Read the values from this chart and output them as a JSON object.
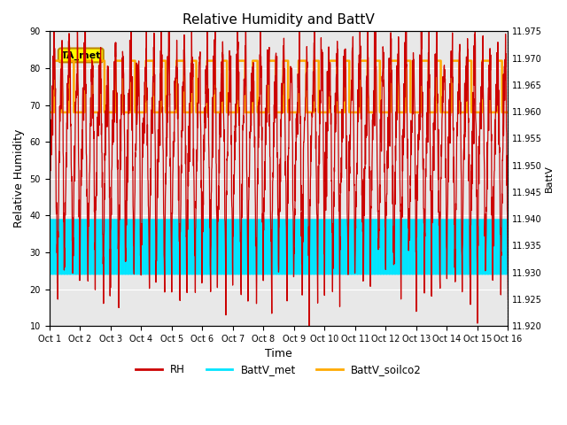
{
  "title": "Relative Humidity and BattV",
  "xlabel": "Time",
  "ylabel_left": "Relative Humidity",
  "ylabel_right": "BattV",
  "ylim_left": [
    10,
    90
  ],
  "ylim_right": [
    11.92,
    11.975
  ],
  "yticks_left": [
    10,
    20,
    30,
    40,
    50,
    60,
    70,
    80,
    90
  ],
  "yticks_right": [
    11.92,
    11.925,
    11.93,
    11.935,
    11.94,
    11.945,
    11.95,
    11.955,
    11.96,
    11.965,
    11.97,
    11.975
  ],
  "x_tick_labels": [
    "Oct 1",
    "Oct 2",
    "Oct 3",
    "Oct 4",
    "Oct 5",
    "Oct 6",
    "Oct 7",
    "Oct 8",
    "Oct 9",
    "Oct 10",
    "Oct 11",
    "Oct 12",
    "Oct 13",
    "Oct 14",
    "Oct 15",
    "Oct 16"
  ],
  "color_rh": "#cc0000",
  "color_batt_met": "#00e5ff",
  "color_batt_soilco2": "#ffaa00",
  "background_color": "#e8e8e8",
  "ta_met_box_color": "#ffff00",
  "ta_met_box_edge": "#bb8800",
  "annotation_text": "TA_met",
  "batt_met_high": 39,
  "batt_met_low": 24,
  "batt_soilco2_high": 82,
  "batt_soilco2_low": 68,
  "rh_seed": 12345
}
